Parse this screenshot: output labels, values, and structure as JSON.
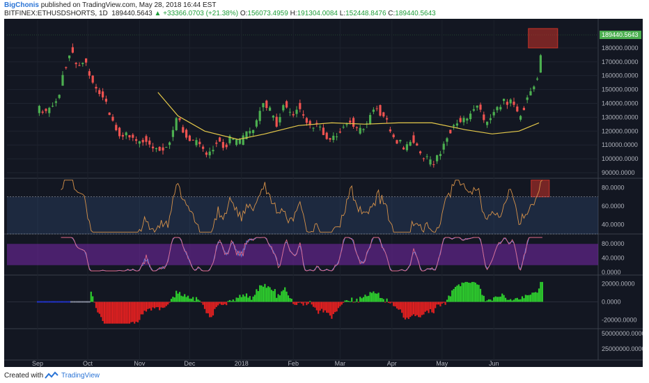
{
  "header": {
    "author": "BigChonis",
    "published": "published on TradingView.com, May 28, 2018 16:44 EST",
    "symbol": "BITFINEX:ETHUSDSHORTS, 1D",
    "last": "189440.5643",
    "arrow": "▲",
    "change": "+33366.0703 (+21.38%)",
    "o_label": "O:",
    "o_val": "156073.4959",
    "h_label": "H:",
    "h_val": "191304.0084",
    "l_label": "L:",
    "l_val": "152448.8476",
    "c_label": "C:",
    "c_val": "189440.5643"
  },
  "footer": {
    "created": "Created with",
    "brand": "TradingView"
  },
  "colors": {
    "bg": "#131722",
    "up": "#4caf50",
    "down": "#ef5350",
    "ma": "#e5c94a",
    "rsi": "#d8934a",
    "stoch_k": "#5b7de0",
    "stoch_d": "#e26a8a",
    "hist_up": "#2dcc2d",
    "hist_down": "#e02020",
    "axis_text": "#b2b5be"
  },
  "chart_data": [
    {
      "type": "candlestick",
      "panel": "price",
      "x_ticks": [
        "Sep",
        "Oct",
        "Nov",
        "Dec",
        "2018",
        "Feb",
        "Mar",
        "Apr",
        "May",
        "Jun"
      ],
      "y_ticks": [
        "180000.0000",
        "170000.0000",
        "160000.0000",
        "150000.0000",
        "140000.0000",
        "130000.0000",
        "120000.0000",
        "110000.0000",
        "100000.0000",
        "90000.0000"
      ],
      "ylim": [
        90000,
        195000
      ],
      "last_price_label": "189440.5643",
      "anchors": [
        [
          0,
          136000
        ],
        [
          6,
          134000
        ],
        [
          12,
          142000
        ],
        [
          16,
          165000
        ],
        [
          20,
          178000
        ],
        [
          24,
          165000
        ],
        [
          28,
          170000
        ],
        [
          32,
          158000
        ],
        [
          36,
          150000
        ],
        [
          40,
          142000
        ],
        [
          44,
          130000
        ],
        [
          48,
          120000
        ],
        [
          52,
          116000
        ],
        [
          56,
          118000
        ],
        [
          60,
          112000
        ],
        [
          64,
          114000
        ],
        [
          68,
          108000
        ],
        [
          72,
          106000
        ],
        [
          76,
          108000
        ],
        [
          80,
          114000
        ],
        [
          84,
          132000
        ],
        [
          88,
          118000
        ],
        [
          92,
          114000
        ],
        [
          96,
          110000
        ],
        [
          100,
          103000
        ],
        [
          104,
          108000
        ],
        [
          108,
          114000
        ],
        [
          112,
          108000
        ],
        [
          116,
          116000
        ],
        [
          120,
          110000
        ],
        [
          124,
          116000
        ],
        [
          128,
          120000
        ],
        [
          132,
          130000
        ],
        [
          136,
          142000
        ],
        [
          140,
          132000
        ],
        [
          144,
          124000
        ],
        [
          148,
          140000
        ],
        [
          152,
          130000
        ],
        [
          156,
          138000
        ],
        [
          160,
          128000
        ],
        [
          164,
          124000
        ],
        [
          168,
          122000
        ],
        [
          172,
          118000
        ],
        [
          176,
          112000
        ],
        [
          180,
          120000
        ],
        [
          184,
          124000
        ],
        [
          188,
          128000
        ],
        [
          192,
          120000
        ],
        [
          196,
          124000
        ],
        [
          200,
          132000
        ],
        [
          204,
          136000
        ],
        [
          208,
          128000
        ],
        [
          212,
          120000
        ],
        [
          216,
          112000
        ],
        [
          220,
          108000
        ],
        [
          224,
          114000
        ],
        [
          228,
          106000
        ],
        [
          232,
          100000
        ],
        [
          236,
          96000
        ],
        [
          240,
          104000
        ],
        [
          244,
          112000
        ],
        [
          248,
          124000
        ],
        [
          252,
          130000
        ],
        [
          256,
          126000
        ],
        [
          260,
          132000
        ],
        [
          264,
          140000
        ],
        [
          268,
          124000
        ],
        [
          272,
          130000
        ],
        [
          276,
          136000
        ],
        [
          280,
          142000
        ],
        [
          284,
          140000
        ],
        [
          288,
          130000
        ],
        [
          292,
          140000
        ],
        [
          296,
          150000
        ],
        [
          300,
          160000
        ],
        [
          302,
          189440
        ]
      ],
      "moving_average": [
        [
          72,
          148000
        ],
        [
          84,
          131000
        ],
        [
          100,
          120000
        ],
        [
          120,
          114000
        ],
        [
          136,
          118000
        ],
        [
          156,
          124000
        ],
        [
          176,
          126000
        ],
        [
          196,
          125000
        ],
        [
          216,
          126000
        ],
        [
          236,
          126000
        ],
        [
          256,
          121000
        ],
        [
          272,
          118000
        ],
        [
          288,
          120000
        ],
        [
          300,
          126000
        ]
      ]
    },
    {
      "type": "line",
      "panel": "rsi",
      "y_ticks": [
        "80.0000",
        "60.0000",
        "40.0000"
      ],
      "ylim": [
        30,
        90
      ],
      "bands": [
        70,
        30
      ]
    },
    {
      "type": "line",
      "panel": "stochastic",
      "y_ticks": [
        "80.0000",
        "40.0000",
        "0.0000"
      ],
      "ylim": [
        0,
        100
      ],
      "bands": [
        80,
        20
      ]
    },
    {
      "type": "bar",
      "panel": "histogram",
      "y_ticks": [
        "20000.0000",
        "0.0000",
        "-20000.0000"
      ],
      "ylim": [
        -25000,
        25000
      ]
    },
    {
      "type": "bar",
      "panel": "volume",
      "y_ticks": [
        "50000000.0000",
        "25000000.0000"
      ]
    }
  ]
}
